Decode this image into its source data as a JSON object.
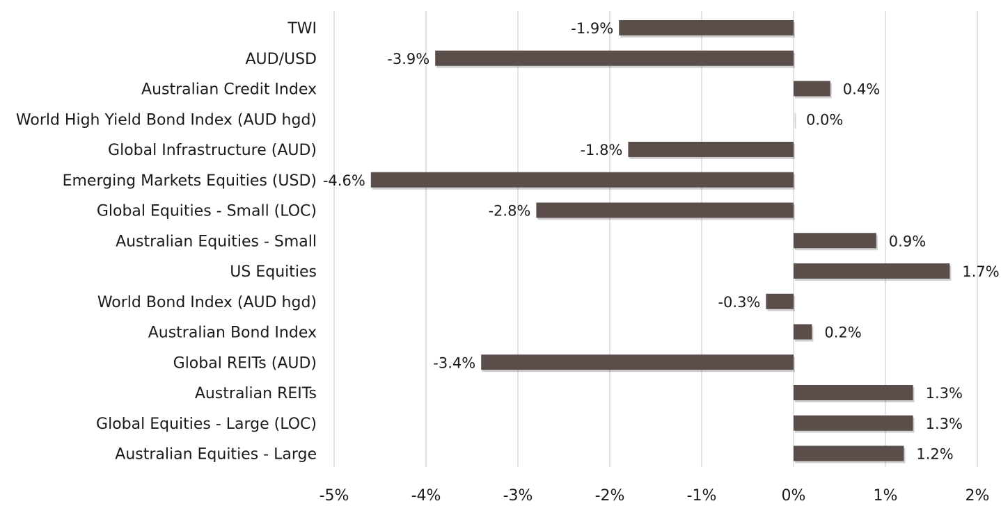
{
  "colors": {
    "bar": "#5a4d4a",
    "grid": "#d9d9d9",
    "text": "#1a1a1a"
  },
  "chart_data": {
    "type": "bar",
    "orientation": "horizontal",
    "categories": [
      "TWI",
      "AUD/USD",
      "Australian Credit Index",
      "World High Yield Bond Index (AUD hgd)",
      "Global Infrastructure (AUD)",
      "Emerging Markets Equities (USD)",
      "Global Equities - Small (LOC)",
      "Australian Equities - Small",
      "US Equities",
      "World Bond Index (AUD hgd)",
      "Australian Bond Index",
      "Global REITs (AUD)",
      "Australian REITs",
      "Global Equities - Large (LOC)",
      "Australian Equities - Large"
    ],
    "values": [
      -1.9,
      -3.9,
      0.4,
      0.0,
      -1.8,
      -4.6,
      -2.8,
      0.9,
      1.7,
      -0.3,
      0.2,
      -3.4,
      1.3,
      1.3,
      1.2
    ],
    "data_labels": [
      "-1.9%",
      "-3.9%",
      "0.4%",
      "0.0%",
      "-1.8%",
      "-4.6%",
      "-2.8%",
      "0.9%",
      "1.7%",
      "-0.3%",
      "0.2%",
      "-3.4%",
      "1.3%",
      "1.3%",
      "1.2%"
    ],
    "xlim": [
      -5,
      2
    ],
    "x_ticks": [
      -5,
      -4,
      -3,
      -2,
      -1,
      0,
      1,
      2
    ],
    "x_tick_labels": [
      "-5%",
      "-4%",
      "-3%",
      "-2%",
      "-1%",
      "0%",
      "1%",
      "2%"
    ],
    "grid": true,
    "legend": "none",
    "title": "",
    "xlabel": "",
    "ylabel": ""
  }
}
